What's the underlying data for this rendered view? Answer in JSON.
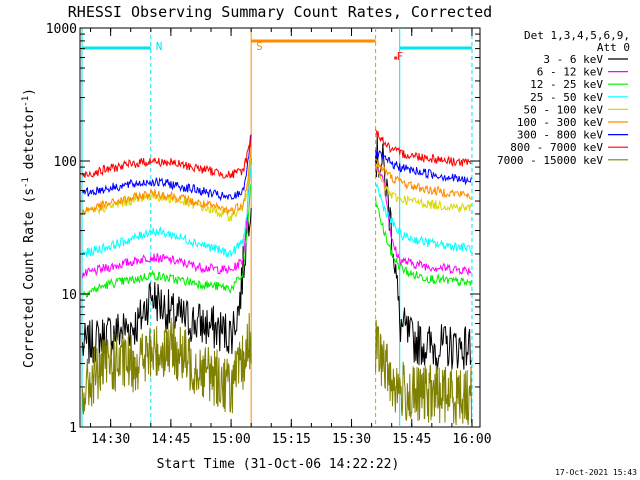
{
  "chart_data": {
    "type": "line",
    "title": "RHESSI Observing Summary Count Rates, Corrected",
    "xlabel": "Start Time (31-Oct-06 14:22:22)",
    "ylabel": "Corrected Count Rate (s⁻¹ detector⁻¹)",
    "ylabel_main": "Corrected Count Rate (s",
    "ylabel_mid": " detector",
    "ylabel_end": ")",
    "ylabel_sup": "-1",
    "y_scale": "log",
    "ylim": [
      1,
      1000
    ],
    "xlim": [
      "14:22:22",
      "16:02:00"
    ],
    "x_ticks": [
      "14:30",
      "14:45",
      "15:00",
      "15:15",
      "15:30",
      "15:45",
      "16:00"
    ],
    "y_ticks": [
      "1",
      "10",
      "100",
      "1000"
    ],
    "legend_header": [
      "Det 1,3,4,5,6,9,",
      "Att 0"
    ],
    "legend_position": "right",
    "timestamp": "17-Oct-2021 15:43",
    "annotations": [
      {
        "label": "N",
        "time": "14:40",
        "color": "#00e5ee"
      },
      {
        "label": "S",
        "time": "15:05",
        "color": "#ff8c00"
      },
      {
        "label": "F",
        "time": "15:40",
        "color": "#ff2020"
      }
    ],
    "regions": {
      "night_1": [
        "14:22:22",
        "14:40"
      ],
      "night_2": [
        "15:42",
        "16:00"
      ],
      "saa": [
        "15:05",
        "15:36"
      ],
      "flare_marker": "15:41"
    },
    "series": [
      {
        "name": "3 - 6 keV",
        "color": "#000000",
        "points": [
          [
            "14:23",
            4
          ],
          [
            "14:30",
            5
          ],
          [
            "14:37",
            6
          ],
          [
            "14:40",
            10
          ],
          [
            "14:45",
            7
          ],
          [
            "14:52",
            6
          ],
          [
            "15:00",
            5
          ],
          [
            "15:02",
            8
          ],
          [
            "15:04",
            30
          ],
          [
            "15:05",
            60
          ],
          [
            "15:36",
            110
          ],
          [
            "15:38",
            90
          ],
          [
            "15:40",
            30
          ],
          [
            "15:41",
            15
          ],
          [
            "15:42",
            6
          ],
          [
            "15:45",
            4.5
          ],
          [
            "15:50",
            4
          ],
          [
            "16:00",
            4
          ]
        ]
      },
      {
        "name": "6 - 12 keV",
        "color": "#ff00ff",
        "points": [
          [
            "14:23",
            14
          ],
          [
            "14:30",
            16
          ],
          [
            "14:37",
            18
          ],
          [
            "14:40",
            19
          ],
          [
            "14:45",
            18
          ],
          [
            "14:52",
            16
          ],
          [
            "15:00",
            15
          ],
          [
            "15:03",
            18
          ],
          [
            "15:04",
            40
          ],
          [
            "15:05",
            110
          ],
          [
            "15:36",
            90
          ],
          [
            "15:38",
            75
          ],
          [
            "15:40",
            25
          ],
          [
            "15:42",
            18
          ],
          [
            "15:45",
            17
          ],
          [
            "15:50",
            16
          ],
          [
            "16:00",
            15
          ]
        ]
      },
      {
        "name": "12 - 25 keV",
        "color": "#00ee00",
        "points": [
          [
            "14:23",
            10
          ],
          [
            "14:30",
            12
          ],
          [
            "14:37",
            13
          ],
          [
            "14:40",
            14
          ],
          [
            "14:45",
            13
          ],
          [
            "14:52",
            12
          ],
          [
            "15:00",
            11
          ],
          [
            "15:03",
            14
          ],
          [
            "15:04",
            30
          ],
          [
            "15:05",
            70
          ],
          [
            "15:36",
            50
          ],
          [
            "15:38",
            30
          ],
          [
            "15:40",
            20
          ],
          [
            "15:42",
            16
          ],
          [
            "15:45",
            14
          ],
          [
            "15:50",
            13
          ],
          [
            "16:00",
            12
          ]
        ]
      },
      {
        "name": "25 - 50 keV",
        "color": "#00ffff",
        "points": [
          [
            "14:23",
            20
          ],
          [
            "14:30",
            23
          ],
          [
            "14:37",
            27
          ],
          [
            "14:40",
            30
          ],
          [
            "14:45",
            28
          ],
          [
            "14:52",
            24
          ],
          [
            "15:00",
            20
          ],
          [
            "15:03",
            25
          ],
          [
            "15:04",
            40
          ],
          [
            "15:05",
            90
          ],
          [
            "15:36",
            70
          ],
          [
            "15:38",
            45
          ],
          [
            "15:40",
            35
          ],
          [
            "15:42",
            28
          ],
          [
            "15:45",
            26
          ],
          [
            "15:50",
            24
          ],
          [
            "16:00",
            22
          ]
        ]
      },
      {
        "name": "50 - 100 keV",
        "color": "#d8d800",
        "points": [
          [
            "14:23",
            40
          ],
          [
            "14:30",
            46
          ],
          [
            "14:37",
            52
          ],
          [
            "14:40",
            55
          ],
          [
            "14:45",
            52
          ],
          [
            "14:52",
            46
          ],
          [
            "15:00",
            38
          ],
          [
            "15:03",
            45
          ],
          [
            "15:04",
            60
          ],
          [
            "15:05",
            120
          ],
          [
            "15:36",
            90
          ],
          [
            "15:38",
            65
          ],
          [
            "15:40",
            55
          ],
          [
            "15:42",
            52
          ],
          [
            "15:45",
            50
          ],
          [
            "15:50",
            47
          ],
          [
            "16:00",
            44
          ]
        ]
      },
      {
        "name": "100 - 300 keV",
        "color": "#ff8c00",
        "points": [
          [
            "14:23",
            42
          ],
          [
            "14:30",
            48
          ],
          [
            "14:37",
            54
          ],
          [
            "14:40",
            57
          ],
          [
            "14:45",
            55
          ],
          [
            "14:52",
            48
          ],
          [
            "15:00",
            42
          ],
          [
            "15:03",
            48
          ],
          [
            "15:04",
            65
          ],
          [
            "15:05",
            130
          ],
          [
            "15:36",
            100
          ],
          [
            "15:38",
            85
          ],
          [
            "15:40",
            75
          ],
          [
            "15:42",
            70
          ],
          [
            "15:45",
            65
          ],
          [
            "15:50",
            60
          ],
          [
            "16:00",
            55
          ]
        ]
      },
      {
        "name": "300 - 800 keV",
        "color": "#0000ff",
        "points": [
          [
            "14:23",
            57
          ],
          [
            "14:30",
            63
          ],
          [
            "14:37",
            68
          ],
          [
            "14:40",
            70
          ],
          [
            "14:45",
            67
          ],
          [
            "14:52",
            60
          ],
          [
            "15:00",
            52
          ],
          [
            "15:03",
            60
          ],
          [
            "15:04",
            90
          ],
          [
            "15:05",
            160
          ],
          [
            "15:36",
            115
          ],
          [
            "15:38",
            105
          ],
          [
            "15:40",
            95
          ],
          [
            "15:42",
            90
          ],
          [
            "15:45",
            85
          ],
          [
            "15:50",
            80
          ],
          [
            "16:00",
            70
          ]
        ]
      },
      {
        "name": "800 - 7000 keV",
        "color": "#ff0000",
        "points": [
          [
            "14:23",
            78
          ],
          [
            "14:30",
            88
          ],
          [
            "14:37",
            97
          ],
          [
            "14:40",
            100
          ],
          [
            "14:45",
            97
          ],
          [
            "14:52",
            88
          ],
          [
            "15:00",
            78
          ],
          [
            "15:03",
            85
          ],
          [
            "15:04",
            110
          ],
          [
            "15:05",
            150
          ],
          [
            "15:36",
            170
          ],
          [
            "15:38",
            140
          ],
          [
            "15:40",
            120
          ],
          [
            "15:42",
            115
          ],
          [
            "15:45",
            110
          ],
          [
            "15:50",
            105
          ],
          [
            "16:00",
            95
          ]
        ]
      },
      {
        "name": "7000 - 15000 keV",
        "color": "#808000",
        "points": [
          [
            "14:23",
            1.7
          ],
          [
            "14:26",
            2.5
          ],
          [
            "14:30",
            3
          ],
          [
            "14:35",
            3
          ],
          [
            "14:40",
            3.5
          ],
          [
            "14:45",
            4
          ],
          [
            "14:50",
            3
          ],
          [
            "14:55",
            2.5
          ],
          [
            "15:00",
            2
          ],
          [
            "15:03",
            3
          ],
          [
            "15:05",
            5
          ],
          [
            "15:36",
            4
          ],
          [
            "15:38",
            3
          ],
          [
            "15:41",
            2
          ],
          [
            "15:45",
            1.7
          ],
          [
            "15:50",
            1.8
          ],
          [
            "16:00",
            1.7
          ]
        ]
      }
    ]
  }
}
